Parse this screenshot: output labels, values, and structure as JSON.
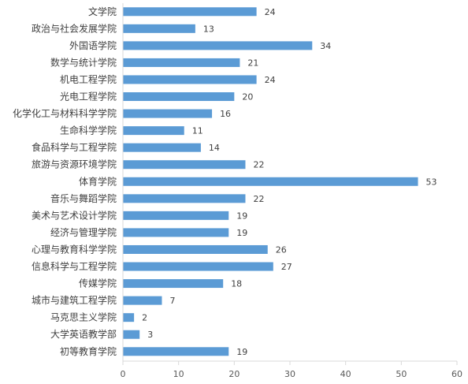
{
  "chart_data": {
    "type": "bar",
    "orientation": "horizontal",
    "title": "",
    "xlabel": "",
    "ylabel": "",
    "categories": [
      "文学院",
      "政治与社会发展学院",
      "外国语学院",
      "数学与统计学院",
      "机电工程学院",
      "光电工程学院",
      "化学化工与材料科学学院",
      "生命科学学院",
      "食品科学与工程学院",
      "旅游与资源环境学院",
      "体育学院",
      "音乐与舞蹈学院",
      "美术与艺术设计学院",
      "经济与管理学院",
      "心理与教育科学学院",
      "信息科学与工程学院",
      "传媒学院",
      "城市与建筑工程学院",
      "马克思主义学院",
      "大学英语教学部",
      "初等教育学院"
    ],
    "values": [
      24,
      13,
      34,
      21,
      24,
      20,
      16,
      11,
      14,
      22,
      53,
      22,
      19,
      19,
      26,
      27,
      18,
      7,
      2,
      3,
      19
    ],
    "xlim": [
      0,
      60
    ],
    "xticks": [
      "0",
      "10",
      "20",
      "30",
      "40",
      "50",
      "60"
    ],
    "grid": false,
    "legend": "none",
    "bar_color": "#5B9BD5",
    "data_labels": true
  }
}
